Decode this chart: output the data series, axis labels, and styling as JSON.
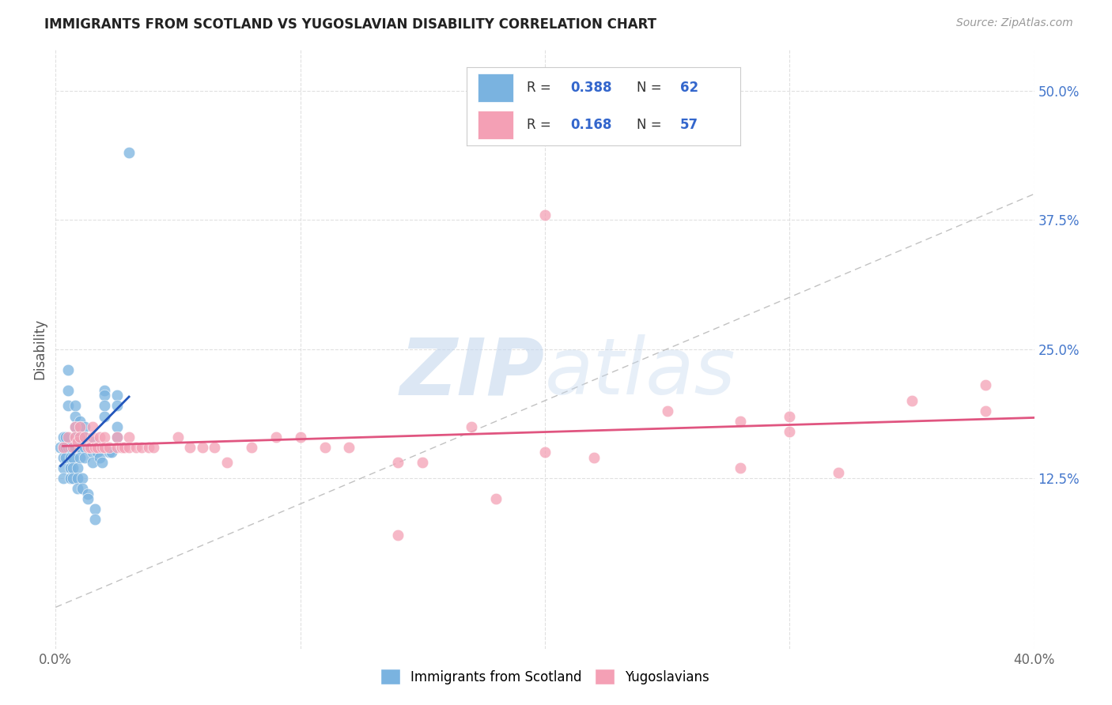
{
  "title": "IMMIGRANTS FROM SCOTLAND VS YUGOSLAVIAN DISABILITY CORRELATION CHART",
  "source": "Source: ZipAtlas.com",
  "ylabel": "Disability",
  "ytick_labels": [
    "12.5%",
    "25.0%",
    "37.5%",
    "50.0%"
  ],
  "ytick_values": [
    0.125,
    0.25,
    0.375,
    0.5
  ],
  "xlim": [
    0.0,
    0.4
  ],
  "ylim": [
    -0.04,
    0.54
  ],
  "legend1_R": "0.388",
  "legend1_N": "62",
  "legend2_R": "0.168",
  "legend2_N": "57",
  "color_scotland": "#7ab3e0",
  "color_yugoslavian": "#f4a0b5",
  "line_color_scotland": "#2255bb",
  "line_color_yugoslavian": "#e05580",
  "diagonal_color": "#bbbbbb",
  "watermark_zip": "ZIP",
  "watermark_atlas": "atlas",
  "scotland_x": [
    0.002,
    0.003,
    0.003,
    0.003,
    0.003,
    0.003,
    0.004,
    0.004,
    0.004,
    0.005,
    0.005,
    0.005,
    0.005,
    0.006,
    0.006,
    0.006,
    0.006,
    0.007,
    0.007,
    0.007,
    0.008,
    0.008,
    0.008,
    0.008,
    0.008,
    0.009,
    0.009,
    0.009,
    0.01,
    0.01,
    0.01,
    0.01,
    0.01,
    0.011,
    0.011,
    0.012,
    0.012,
    0.012,
    0.012,
    0.013,
    0.013,
    0.014,
    0.015,
    0.015,
    0.015,
    0.016,
    0.016,
    0.017,
    0.018,
    0.018,
    0.019,
    0.02,
    0.02,
    0.02,
    0.02,
    0.022,
    0.023,
    0.025,
    0.025,
    0.025,
    0.025,
    0.03
  ],
  "scotland_y": [
    0.155,
    0.165,
    0.155,
    0.145,
    0.135,
    0.125,
    0.165,
    0.155,
    0.145,
    0.23,
    0.21,
    0.195,
    0.155,
    0.155,
    0.145,
    0.135,
    0.125,
    0.145,
    0.135,
    0.125,
    0.195,
    0.185,
    0.175,
    0.165,
    0.155,
    0.135,
    0.125,
    0.115,
    0.18,
    0.175,
    0.165,
    0.155,
    0.145,
    0.125,
    0.115,
    0.175,
    0.165,
    0.155,
    0.145,
    0.11,
    0.105,
    0.155,
    0.16,
    0.15,
    0.14,
    0.095,
    0.085,
    0.15,
    0.155,
    0.145,
    0.14,
    0.21,
    0.205,
    0.195,
    0.185,
    0.15,
    0.15,
    0.205,
    0.195,
    0.175,
    0.165,
    0.44
  ],
  "yugoslavian_x": [
    0.003,
    0.005,
    0.007,
    0.008,
    0.008,
    0.009,
    0.01,
    0.01,
    0.012,
    0.013,
    0.014,
    0.015,
    0.015,
    0.016,
    0.017,
    0.018,
    0.019,
    0.02,
    0.02,
    0.022,
    0.025,
    0.025,
    0.027,
    0.028,
    0.03,
    0.03,
    0.033,
    0.035,
    0.038,
    0.04,
    0.05,
    0.055,
    0.06,
    0.065,
    0.07,
    0.08,
    0.09,
    0.1,
    0.11,
    0.12,
    0.14,
    0.15,
    0.17,
    0.18,
    0.2,
    0.22,
    0.25,
    0.28,
    0.3,
    0.32,
    0.35,
    0.38,
    0.38,
    0.28,
    0.3,
    0.14,
    0.2
  ],
  "yugoslavian_y": [
    0.155,
    0.165,
    0.155,
    0.175,
    0.165,
    0.16,
    0.175,
    0.165,
    0.165,
    0.155,
    0.155,
    0.175,
    0.165,
    0.155,
    0.155,
    0.165,
    0.155,
    0.165,
    0.155,
    0.155,
    0.165,
    0.155,
    0.155,
    0.155,
    0.165,
    0.155,
    0.155,
    0.155,
    0.155,
    0.155,
    0.165,
    0.155,
    0.155,
    0.155,
    0.14,
    0.155,
    0.165,
    0.165,
    0.155,
    0.155,
    0.14,
    0.14,
    0.175,
    0.105,
    0.15,
    0.145,
    0.19,
    0.18,
    0.185,
    0.13,
    0.2,
    0.215,
    0.19,
    0.135,
    0.17,
    0.07,
    0.38
  ]
}
